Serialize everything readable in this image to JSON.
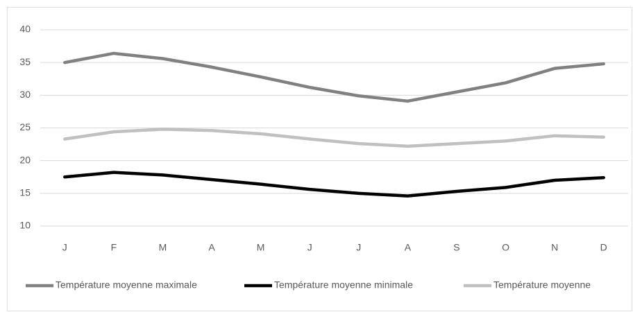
{
  "chart_data": {
    "type": "line",
    "categories": [
      "J",
      "F",
      "M",
      "A",
      "M",
      "J",
      "J",
      "A",
      "S",
      "O",
      "N",
      "D"
    ],
    "series": [
      {
        "name": "Température moyenne maximale",
        "color": "#808080",
        "values": [
          35.0,
          36.4,
          35.6,
          34.3,
          32.8,
          31.2,
          29.9,
          29.1,
          30.5,
          31.9,
          34.1,
          34.8
        ]
      },
      {
        "name": "Température moyenne minimale",
        "color": "#000000",
        "values": [
          17.5,
          18.2,
          17.8,
          17.1,
          16.4,
          15.6,
          15.0,
          14.6,
          15.3,
          15.9,
          17.0,
          17.4
        ]
      },
      {
        "name": "Température moyenne",
        "color": "#c0c0c0",
        "values": [
          23.3,
          24.4,
          24.8,
          24.6,
          24.1,
          23.3,
          22.6,
          22.2,
          22.6,
          23.0,
          23.8,
          23.6
        ]
      }
    ],
    "ylim": [
      10,
      40
    ],
    "yticks": [
      10,
      15,
      20,
      25,
      30,
      35,
      40
    ],
    "grid": true,
    "legend": "bottom"
  }
}
